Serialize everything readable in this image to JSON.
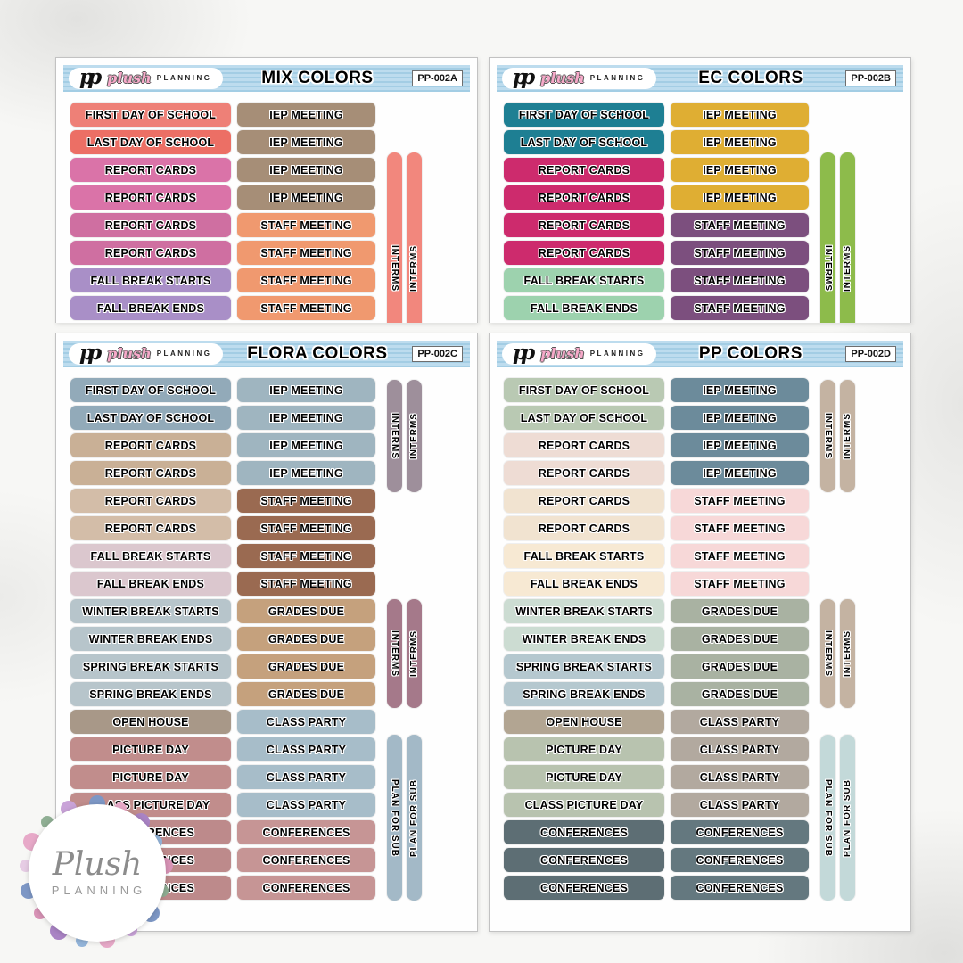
{
  "logo": {
    "monogram": "pp",
    "plush": "plush",
    "planning": "PLANNING"
  },
  "watermark": {
    "plush": "Plush",
    "planning": "PLANNING"
  },
  "colors": {
    "header_band": "#b7d9eb",
    "header_stripe": "#a1cae1",
    "page_bg": "#f7f7f5",
    "sheet_bg": "#fefefe"
  },
  "sheets": [
    {
      "title": "MIX COLORS",
      "code": "PP-002A",
      "cropped": true,
      "left_labels": [
        "FIRST DAY OF SCHOOL",
        "LAST DAY OF SCHOOL",
        "REPORT CARDS",
        "REPORT CARDS",
        "REPORT CARDS",
        "REPORT CARDS",
        "FALL BREAK STARTS",
        "FALL BREAK ENDS"
      ],
      "left_colors": [
        "#ee8077",
        "#ec6f65",
        "#da73a8",
        "#da73a8",
        "#cf6fa1",
        "#cf6fa1",
        "#a98fc7",
        "#a98fc7"
      ],
      "right_labels": [
        "IEP MEETING",
        "IEP MEETING",
        "IEP MEETING",
        "IEP MEETING",
        "STAFF MEETING",
        "STAFF MEETING",
        "STAFF MEETING",
        "STAFF MEETING"
      ],
      "right_colors": [
        "#a68e77",
        "#a68e77",
        "#a68e77",
        "#a68e77",
        "#f0996f",
        "#f0996f",
        "#f0996f",
        "#f0996f"
      ],
      "tab_groups": [
        {
          "color": "#f2877d",
          "labels": [
            "INTERMS",
            "INTERMS"
          ]
        }
      ]
    },
    {
      "title": "EC COLORS",
      "code": "PP-002B",
      "cropped": true,
      "left_labels": [
        "FIRST DAY OF SCHOOL",
        "LAST DAY OF SCHOOL",
        "REPORT CARDS",
        "REPORT CARDS",
        "REPORT CARDS",
        "REPORT CARDS",
        "FALL BREAK STARTS",
        "FALL BREAK ENDS"
      ],
      "left_colors": [
        "#1e7f93",
        "#1e7f93",
        "#cd2b6d",
        "#cd2b6d",
        "#cd2b6d",
        "#cd2b6d",
        "#9dd2ae",
        "#9dd2ae"
      ],
      "right_labels": [
        "IEP MEETING",
        "IEP MEETING",
        "IEP MEETING",
        "IEP MEETING",
        "STAFF MEETING",
        "STAFF MEETING",
        "STAFF MEETING",
        "STAFF MEETING"
      ],
      "right_colors": [
        "#dfae33",
        "#dfae33",
        "#dfae33",
        "#dfae33",
        "#7c4f7e",
        "#7c4f7e",
        "#7c4f7e",
        "#7c4f7e"
      ],
      "tab_groups": [
        {
          "color": "#8dbb4b",
          "labels": [
            "INTERMS",
            "INTERMS"
          ]
        }
      ]
    },
    {
      "title": "FLORA COLORS",
      "code": "PP-002C",
      "cropped": false,
      "left_labels": [
        "FIRST DAY OF SCHOOL",
        "LAST DAY OF SCHOOL",
        "REPORT CARDS",
        "REPORT CARDS",
        "REPORT CARDS",
        "REPORT CARDS",
        "FALL BREAK STARTS",
        "FALL BREAK ENDS",
        "WINTER BREAK STARTS",
        "WINTER BREAK ENDS",
        "SPRING BREAK STARTS",
        "SPRING BREAK ENDS",
        "OPEN HOUSE",
        "PICTURE DAY",
        "PICTURE DAY",
        "CLASS PICTURE DAY",
        "CONFERENCES",
        "CONFERENCES",
        "CONFERENCES"
      ],
      "left_colors": [
        "#92aab9",
        "#92aab9",
        "#c9b096",
        "#c9b096",
        "#d3bda8",
        "#d3bda8",
        "#dbc7ce",
        "#dbc7ce",
        "#b7c5cb",
        "#b7c5cb",
        "#b7c5cb",
        "#b7c5cb",
        "#a89888",
        "#c18d8c",
        "#c18d8c",
        "#c18d8c",
        "#bd8a8b",
        "#bd8a8b",
        "#bd8a8b"
      ],
      "right_labels": [
        "IEP MEETING",
        "IEP MEETING",
        "IEP MEETING",
        "IEP MEETING",
        "STAFF MEETING",
        "STAFF MEETING",
        "STAFF MEETING",
        "STAFF MEETING",
        "GRADES DUE",
        "GRADES DUE",
        "GRADES DUE",
        "GRADES DUE",
        "CLASS PARTY",
        "CLASS PARTY",
        "CLASS PARTY",
        "CLASS PARTY",
        "CONFERENCES",
        "CONFERENCES",
        "CONFERENCES"
      ],
      "right_colors": [
        "#9fb5c0",
        "#9fb5c0",
        "#9fb5c0",
        "#9fb5c0",
        "#9a6a51",
        "#9a6a51",
        "#9a6a51",
        "#9a6a51",
        "#c5a17d",
        "#c5a17d",
        "#c5a17d",
        "#c5a17d",
        "#a7bdc9",
        "#a7bdc9",
        "#a7bdc9",
        "#a7bdc9",
        "#c69595",
        "#c69595",
        "#c69595"
      ],
      "tab_groups": [
        {
          "color": "#9e8f9b",
          "labels": [
            "INTERMS",
            "INTERMS"
          ]
        },
        {
          "color": "#a5798a",
          "labels": [
            "INTERMS",
            "INTERMS"
          ]
        },
        {
          "color": "#a3b9c7",
          "labels": [
            "PLAN FOR SUB",
            "PLAN FOR SUB"
          ]
        }
      ]
    },
    {
      "title": "PP COLORS",
      "code": "PP-002D",
      "cropped": false,
      "left_labels": [
        "FIRST DAY OF SCHOOL",
        "LAST DAY OF SCHOOL",
        "REPORT CARDS",
        "REPORT CARDS",
        "REPORT CARDS",
        "REPORT CARDS",
        "FALL BREAK STARTS",
        "FALL BREAK ENDS",
        "WINTER BREAK STARTS",
        "WINTER BREAK ENDS",
        "SPRING BREAK STARTS",
        "SPRING BREAK ENDS",
        "OPEN HOUSE",
        "PICTURE DAY",
        "PICTURE DAY",
        "CLASS PICTURE DAY",
        "CONFERENCES",
        "CONFERENCES",
        "CONFERENCES"
      ],
      "left_colors": [
        "#b9c9b3",
        "#b9c9b3",
        "#eedcd4",
        "#eedcd4",
        "#f1e3d0",
        "#f1e3d0",
        "#f7e9d3",
        "#f7e9d3",
        "#ccdcd2",
        "#ccdcd2",
        "#b5c8cf",
        "#b5c8cf",
        "#b2a592",
        "#b8c3af",
        "#b8c3af",
        "#b8c3af",
        "#5d6e74",
        "#5d6e74",
        "#5d6e74"
      ],
      "right_labels": [
        "IEP MEETING",
        "IEP MEETING",
        "IEP MEETING",
        "IEP MEETING",
        "STAFF MEETING",
        "STAFF MEETING",
        "STAFF MEETING",
        "STAFF MEETING",
        "GRADES DUE",
        "GRADES DUE",
        "GRADES DUE",
        "GRADES DUE",
        "CLASS PARTY",
        "CLASS PARTY",
        "CLASS PARTY",
        "CLASS PARTY",
        "CONFERENCES",
        "CONFERENCES",
        "CONFERENCES"
      ],
      "right_colors": [
        "#6c8b9b",
        "#6c8b9b",
        "#6c8b9b",
        "#6c8b9b",
        "#f7d8d8",
        "#f7d8d8",
        "#f7d8d8",
        "#f7d8d8",
        "#a9b2a2",
        "#a9b2a2",
        "#a9b2a2",
        "#a9b2a2",
        "#b2a99f",
        "#b2a99f",
        "#b2a99f",
        "#b2a99f",
        "#64787f",
        "#64787f",
        "#64787f"
      ],
      "tab_groups": [
        {
          "color": "#c4b3a2",
          "labels": [
            "INTERMS",
            "INTERMS"
          ]
        },
        {
          "color": "#c4b3a2",
          "labels": [
            "INTERMS",
            "INTERMS"
          ]
        },
        {
          "color": "#c3d9d9",
          "labels": [
            "PLAN FOR SUB",
            "PLAN FOR SUB"
          ]
        }
      ]
    }
  ]
}
